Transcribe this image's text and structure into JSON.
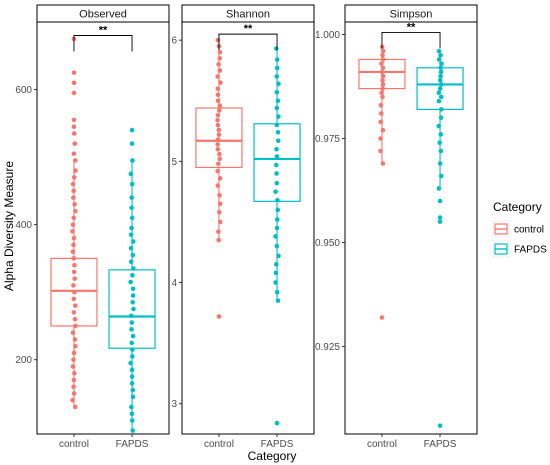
{
  "chart_data": {
    "type": "boxplot",
    "xlabel": "Category",
    "ylabel": "Alpha Diversity Measure",
    "categories": [
      "control",
      "FAPDS"
    ],
    "legend": {
      "title": "Category",
      "position": "right",
      "entries": [
        {
          "label": "control",
          "color": "#F8766D"
        },
        {
          "label": "FAPDS",
          "color": "#00BFC4"
        }
      ]
    },
    "grid": false,
    "colors": {
      "control": "#F8766D",
      "FAPDS": "#00BFC4",
      "strip_bg": "#ffffff",
      "frame": "#000000"
    },
    "panels": [
      {
        "title": "Observed",
        "ylim": [
          90,
          700
        ],
        "yticks": [
          200,
          400,
          600
        ],
        "ytick_labels": [
          "200",
          "400",
          "600"
        ],
        "significance": "**",
        "bracket_y": 680,
        "boxes": [
          {
            "category": "control",
            "min": 130,
            "q1": 250,
            "median": 302,
            "q3": 350,
            "max": 495,
            "outliers": [
              545,
              555,
              595,
              610,
              625,
              675
            ],
            "points": [
              130,
              140,
              150,
              160,
              170,
              180,
              190,
              200,
              210,
              220,
              230,
              240,
              250,
              260,
              270,
              280,
              290,
              300,
              310,
              320,
              330,
              340,
              350,
              360,
              370,
              380,
              390,
              400,
              410,
              420,
              430,
              440,
              450,
              460,
              470,
              480,
              495,
              505,
              520,
              535
            ]
          },
          {
            "category": "FAPDS",
            "min": 95,
            "q1": 217,
            "median": 264,
            "q3": 333,
            "max": 495,
            "outliers": [
              520,
              540
            ],
            "points": [
              95,
              110,
              120,
              130,
              145,
              155,
              165,
              175,
              185,
              195,
              205,
              215,
              225,
              235,
              245,
              255,
              265,
              275,
              285,
              295,
              305,
              315,
              325,
              335,
              345,
              355,
              365,
              375,
              385,
              395,
              410,
              425,
              440,
              460,
              475,
              495
            ]
          }
        ]
      },
      {
        "title": "Shannon",
        "ylim": [
          2.75,
          6.15
        ],
        "yticks": [
          3,
          4,
          5,
          6
        ],
        "ytick_labels": [
          "3",
          "4",
          "5",
          "6"
        ],
        "significance": "**",
        "bracket_y": 6.05,
        "boxes": [
          {
            "category": "control",
            "min": 4.35,
            "q1": 4.95,
            "median": 5.17,
            "q3": 5.44,
            "max": 6.0,
            "outliers": [
              3.72
            ],
            "points": [
              4.35,
              4.42,
              4.5,
              4.58,
              4.65,
              4.72,
              4.8,
              4.86,
              4.92,
              4.98,
              5.02,
              5.06,
              5.1,
              5.14,
              5.18,
              5.22,
              5.26,
              5.3,
              5.34,
              5.38,
              5.42,
              5.46,
              5.5,
              5.55,
              5.6,
              5.65,
              5.7,
              5.75,
              5.8,
              5.85,
              5.9,
              5.95,
              6.0
            ]
          },
          {
            "category": "FAPDS",
            "min": 3.85,
            "q1": 4.67,
            "median": 5.02,
            "q3": 5.31,
            "max": 5.93,
            "outliers": [
              2.84
            ],
            "points": [
              3.85,
              3.92,
              4.0,
              4.08,
              4.15,
              4.22,
              4.3,
              4.38,
              4.45,
              4.52,
              4.6,
              4.68,
              4.75,
              4.82,
              4.9,
              4.97,
              5.04,
              5.1,
              5.17,
              5.24,
              5.3,
              5.37,
              5.44,
              5.5,
              5.57,
              5.64,
              5.7,
              5.77,
              5.84,
              5.93
            ]
          }
        ]
      },
      {
        "title": "Simpson",
        "ylim": [
          0.904,
          1.003
        ],
        "yticks": [
          0.925,
          0.95,
          0.975,
          1.0
        ],
        "ytick_labels": [
          "0.925",
          "0.950",
          "0.975",
          "1.000"
        ],
        "significance": "**",
        "bracket_y": 1.0005,
        "boxes": [
          {
            "category": "control",
            "min": 0.969,
            "q1": 0.987,
            "median": 0.991,
            "q3": 0.994,
            "max": 0.997,
            "outliers": [
              0.932
            ],
            "points": [
              0.969,
              0.972,
              0.975,
              0.977,
              0.979,
              0.981,
              0.983,
              0.985,
              0.986,
              0.987,
              0.988,
              0.989,
              0.99,
              0.991,
              0.992,
              0.993,
              0.994,
              0.995,
              0.996,
              0.997
            ]
          },
          {
            "category": "FAPDS",
            "min": 0.963,
            "q1": 0.982,
            "median": 0.988,
            "q3": 0.992,
            "max": 0.996,
            "outliers": [
              0.906,
              0.955,
              0.956,
              0.96
            ],
            "points": [
              0.963,
              0.966,
              0.969,
              0.972,
              0.974,
              0.976,
              0.978,
              0.98,
              0.982,
              0.984,
              0.985,
              0.986,
              0.987,
              0.988,
              0.989,
              0.99,
              0.991,
              0.992,
              0.993,
              0.994,
              0.995,
              0.996
            ]
          }
        ]
      }
    ]
  }
}
